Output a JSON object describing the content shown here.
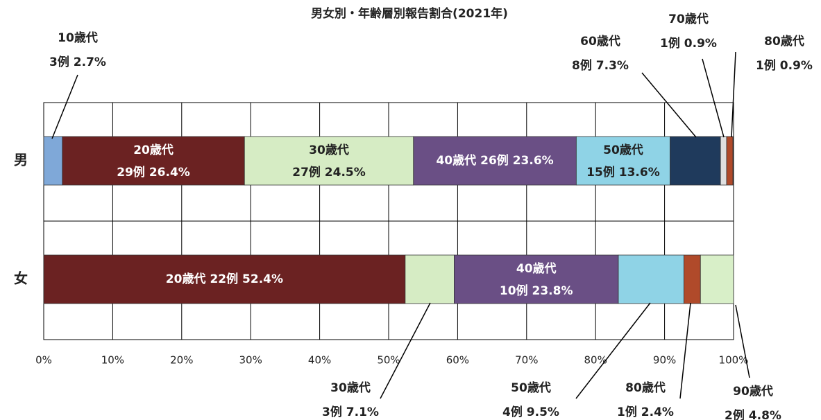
{
  "chart_data": {
    "type": "stacked-bar-horizontal",
    "title": "男女別・年齢層別報告割合(2021年)",
    "categories": [
      "男",
      "女"
    ],
    "xlim": [
      0,
      100
    ],
    "xticks": [
      {
        "value": 0,
        "label": "0%"
      },
      {
        "value": 10,
        "label": "10%"
      },
      {
        "value": 20,
        "label": "20%"
      },
      {
        "value": 30,
        "label": "30%"
      },
      {
        "value": 40,
        "label": "40%"
      },
      {
        "value": 50,
        "label": "50%"
      },
      {
        "value": 60,
        "label": "60%"
      },
      {
        "value": 70,
        "label": "70%"
      },
      {
        "value": 80,
        "label": "80%"
      },
      {
        "value": 90,
        "label": "90%"
      },
      {
        "value": 100,
        "label": "100%"
      }
    ],
    "grid": true,
    "series": [
      {
        "name": "10歳代",
        "color": "#7fa8d8",
        "values": [
          2.7,
          null
        ],
        "value_labels": [
          "3例 2.7%",
          null
        ]
      },
      {
        "name": "20歳代",
        "color": "#6b2222",
        "values": [
          26.4,
          52.4
        ],
        "value_labels": [
          "29例 26.4%",
          "22例 52.4%"
        ]
      },
      {
        "name": "30歳代",
        "color": "#d6ecc4",
        "values": [
          24.5,
          7.1
        ],
        "value_labels": [
          "27例 24.5%",
          "3例 7.1%"
        ]
      },
      {
        "name": "40歳代",
        "color": "#6a4f85",
        "values": [
          23.6,
          23.8
        ],
        "value_labels": [
          "26例 23.6%",
          "10例 23.8%"
        ]
      },
      {
        "name": "50歳代",
        "color": "#8fd3e6",
        "values": [
          13.6,
          9.5
        ],
        "value_labels": [
          "15例 13.6%",
          "4例 9.5%"
        ]
      },
      {
        "name": "60歳代",
        "color": "#1f3a5c",
        "values": [
          7.3,
          null
        ],
        "value_labels": [
          "8例 7.3%",
          null
        ]
      },
      {
        "name": "70歳代",
        "color": "#e0e0e0",
        "values": [
          0.9,
          null
        ],
        "value_labels": [
          "1例 0.9%",
          null
        ]
      },
      {
        "name": "80歳代",
        "color": "#b04a2a",
        "values": [
          0.9,
          2.4
        ],
        "value_labels": [
          "1例 0.9%",
          "1例 2.4%"
        ]
      },
      {
        "name": "90歳代",
        "color": "#d8efc8",
        "values": [
          null,
          4.8
        ],
        "value_labels": [
          null,
          "2例 4.8%"
        ]
      }
    ]
  }
}
